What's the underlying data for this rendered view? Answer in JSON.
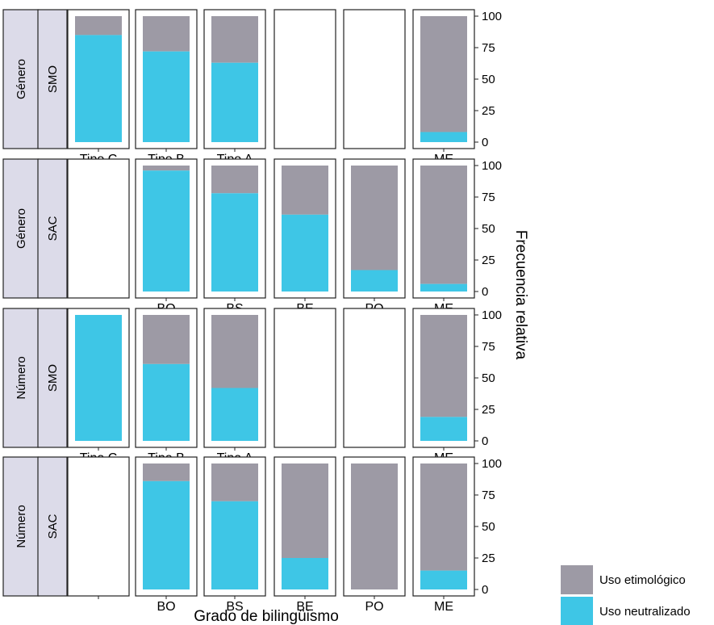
{
  "chart_data": {
    "type": "bar",
    "stacked": true,
    "xlabel": "Grado de bilingüismo",
    "ylabel": "Frecuencia relativa",
    "ylim": [
      0,
      100
    ],
    "yticks": [
      "0",
      "25",
      "50",
      "75",
      "100"
    ],
    "legend": {
      "placement": "bottom-right",
      "items": [
        {
          "name": "Uso etimológico",
          "color": "#9d9aa5"
        },
        {
          "name": "Uso neutralizado",
          "color": "#3ec6e6"
        }
      ]
    },
    "colors": {
      "etimologico": "#9d9aa5",
      "neutralizado": "#3ec6e6",
      "strip": "#dcdbe9"
    },
    "rows": [
      {
        "strip_outer": "Género",
        "strip_inner": "SMO",
        "categories": [
          "Tipo C",
          "Tipo B",
          "Tipo A",
          "",
          "",
          "ME"
        ],
        "neutralizado": [
          85,
          72,
          63,
          null,
          null,
          8
        ]
      },
      {
        "strip_outer": "Género",
        "strip_inner": "SAC",
        "categories": [
          "",
          "BO",
          "BS",
          "BE",
          "PO",
          "ME"
        ],
        "neutralizado": [
          null,
          96,
          78,
          61,
          17,
          6
        ]
      },
      {
        "strip_outer": "Número",
        "strip_inner": "SMO",
        "categories": [
          "Tipo C",
          "Tipo B",
          "Tipo A",
          "",
          "",
          "ME"
        ],
        "neutralizado": [
          100,
          61,
          42,
          null,
          null,
          19
        ]
      },
      {
        "strip_outer": "Número",
        "strip_inner": "SAC",
        "categories": [
          "",
          "BO",
          "BS",
          "BE",
          "PO",
          "ME"
        ],
        "neutralizado": [
          null,
          86,
          70,
          25,
          0,
          15
        ]
      }
    ]
  }
}
